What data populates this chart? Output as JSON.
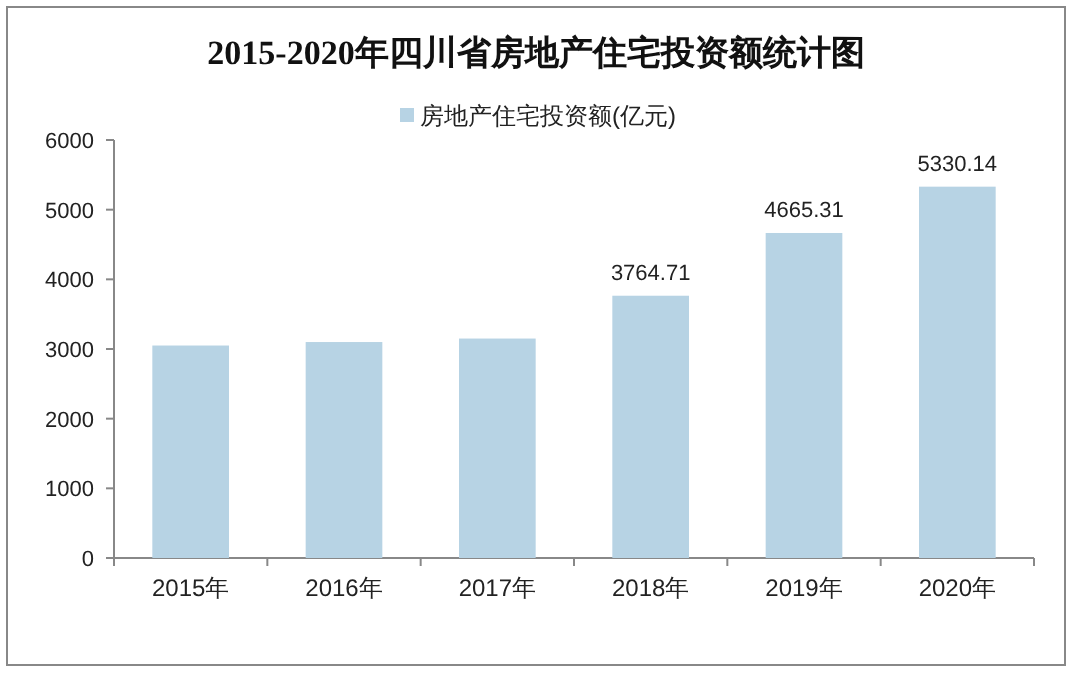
{
  "chart_data": {
    "type": "bar",
    "title": "2015-2020年四川省房地产住宅投资额统计图",
    "categories": [
      "2015年",
      "2016年",
      "2017年",
      "2018年",
      "2019年",
      "2020年"
    ],
    "series": [
      {
        "name": "房地产住宅投资额(亿元)",
        "color": "#b7d3e4",
        "values": [
          3050,
          3100,
          3150,
          3764.71,
          4665.31,
          5330.14
        ],
        "value_labels": [
          null,
          null,
          null,
          "3764.71",
          "4665.31",
          "5330.14"
        ]
      }
    ],
    "ylim": [
      0,
      6000
    ],
    "yticks": [
      0,
      1000,
      2000,
      3000,
      4000,
      5000,
      6000
    ],
    "legend": "top"
  }
}
